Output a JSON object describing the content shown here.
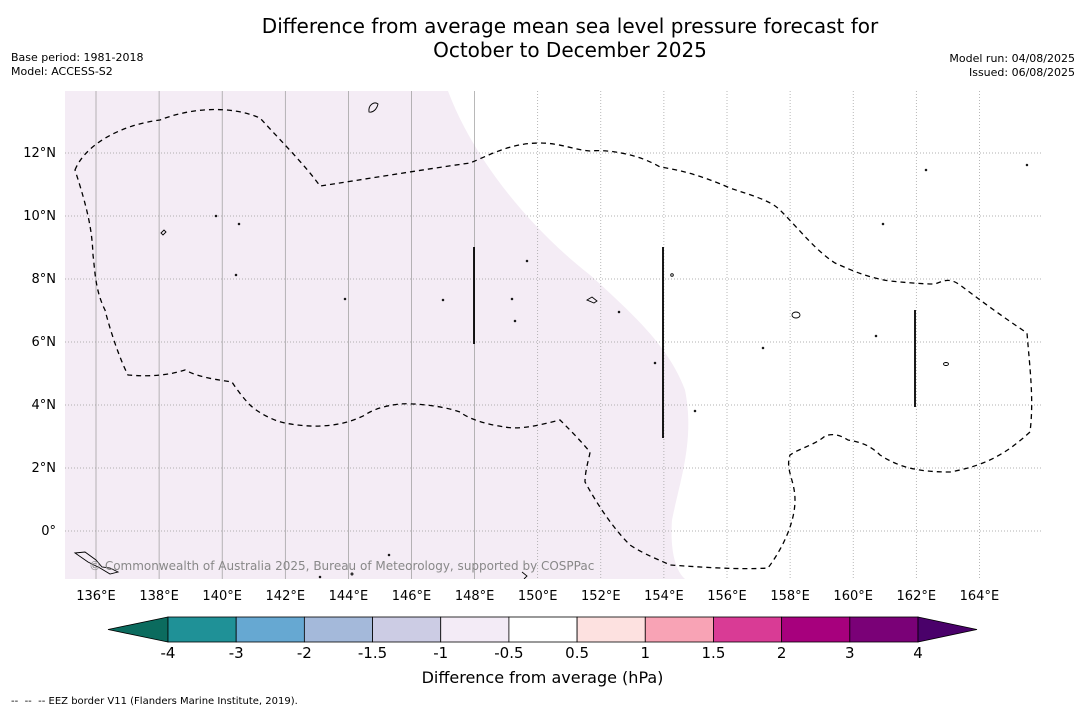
{
  "title": {
    "line1": "Difference from average mean sea level pressure forecast for",
    "line2": "October to December 2025"
  },
  "meta_left": {
    "base_period": "Base period: 1981-2018",
    "model": "Model: ACCESS-S2"
  },
  "meta_right": {
    "model_run": "Model run: 04/08/2025",
    "issued": "Issued: 06/08/2025"
  },
  "map": {
    "lon_labels": [
      "136°E",
      "138°E",
      "140°E",
      "142°E",
      "144°E",
      "146°E",
      "148°E",
      "150°E",
      "152°E",
      "154°E",
      "156°E",
      "158°E",
      "160°E",
      "162°E",
      "164°E"
    ],
    "lat_labels": [
      "12°N",
      "10°N",
      "8°N",
      "6°N",
      "4°N",
      "2°N",
      "0°"
    ],
    "copyright": "© Commonwealth of Australia 2025, Bureau of Meteorology, supported by COSPPac",
    "shaded_colour": "#f4ecf5",
    "border_colour": "#000000"
  },
  "colorbar": {
    "label": "Difference from average (hPa)",
    "ticks": [
      "-4",
      "-3",
      "-2",
      "-1.5",
      "-1",
      "-0.5",
      "0.5",
      "1",
      "1.5",
      "2",
      "3",
      "4"
    ],
    "colors": [
      "#0b6b5e",
      "#1f9197",
      "#66a8d2",
      "#a4b9da",
      "#cccce4",
      "#f3ebf6",
      "#ffffff",
      "#fde1e0",
      "#f8a3b5",
      "#d93b95",
      "#a7007d",
      "#7a0177",
      "#4a016a"
    ]
  },
  "footnote": "--  --  -- EEZ border V11 (Flanders Marine Institute, 2019)."
}
